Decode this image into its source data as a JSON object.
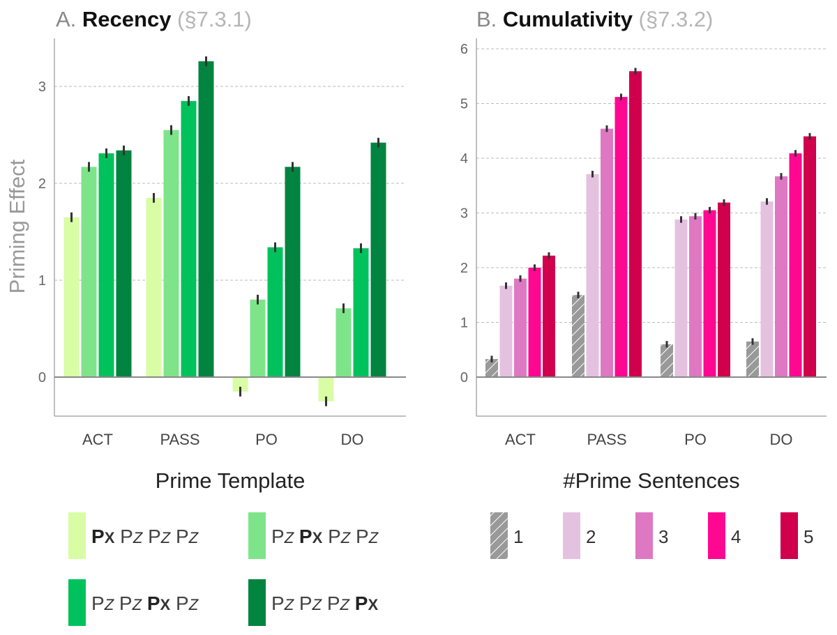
{
  "chart_data": [
    {
      "type": "bar",
      "title_prefix": "A.",
      "title": "Recency",
      "title_suffix": "(§7.3.1)",
      "xlabel": "Prime Template",
      "ylabel": "Priming Effect",
      "ylim": [
        -0.4,
        3.5
      ],
      "yticks": [
        0,
        1,
        2,
        3
      ],
      "grid": true,
      "legend_position": "bottom",
      "categories": [
        "ACT",
        "PASS",
        "PO",
        "DO"
      ],
      "series": [
        {
          "name": "Px Pz Pz Pz",
          "legend_parts": [
            [
              "Px",
              true
            ],
            [
              "Pz",
              false
            ],
            [
              "Pz",
              false
            ],
            [
              "Pz",
              false
            ]
          ],
          "color": "#d9fda4",
          "values": [
            1.65,
            1.85,
            -0.15,
            -0.25
          ]
        },
        {
          "name": "Pz Px Pz Pz",
          "legend_parts": [
            [
              "Pz",
              false
            ],
            [
              "Px",
              true
            ],
            [
              "Pz",
              false
            ],
            [
              "Pz",
              false
            ]
          ],
          "color": "#7ee48a",
          "values": [
            2.17,
            2.55,
            0.8,
            0.71
          ]
        },
        {
          "name": "Pz Pz Px Pz",
          "legend_parts": [
            [
              "Pz",
              false
            ],
            [
              "Pz",
              false
            ],
            [
              "Px",
              true
            ],
            [
              "Pz",
              false
            ]
          ],
          "color": "#00c25c",
          "values": [
            2.31,
            2.85,
            1.34,
            1.33
          ]
        },
        {
          "name": "Pz Pz Pz Px",
          "legend_parts": [
            [
              "Pz",
              false
            ],
            [
              "Pz",
              false
            ],
            [
              "Pz",
              false
            ],
            [
              "Px",
              true
            ]
          ],
          "color": "#00843f",
          "values": [
            2.34,
            3.26,
            2.17,
            2.42
          ]
        }
      ]
    },
    {
      "type": "bar",
      "title_prefix": "B.",
      "title": "Cumulativity",
      "title_suffix": "(§7.3.2)",
      "xlabel": "#Prime Sentences",
      "ylabel": "",
      "ylim": [
        0,
        6.2
      ],
      "yticks": [
        0,
        1,
        2,
        3,
        4,
        5,
        6
      ],
      "grid": true,
      "legend_position": "bottom",
      "categories": [
        "ACT",
        "PASS",
        "PO",
        "DO"
      ],
      "series": [
        {
          "name": "1",
          "color": "#999999",
          "hatched": true,
          "values": [
            0.33,
            1.5,
            0.6,
            0.65
          ]
        },
        {
          "name": "2",
          "color": "#e5c1e0",
          "values": [
            1.67,
            3.71,
            2.88,
            3.21
          ]
        },
        {
          "name": "3",
          "color": "#df78c3",
          "values": [
            1.8,
            4.54,
            2.94,
            3.67
          ]
        },
        {
          "name": "4",
          "color": "#fe0891",
          "values": [
            2.0,
            5.12,
            3.05,
            4.09
          ]
        },
        {
          "name": "5",
          "color": "#d0004d",
          "values": [
            2.22,
            5.59,
            3.19,
            4.4
          ]
        }
      ]
    }
  ]
}
